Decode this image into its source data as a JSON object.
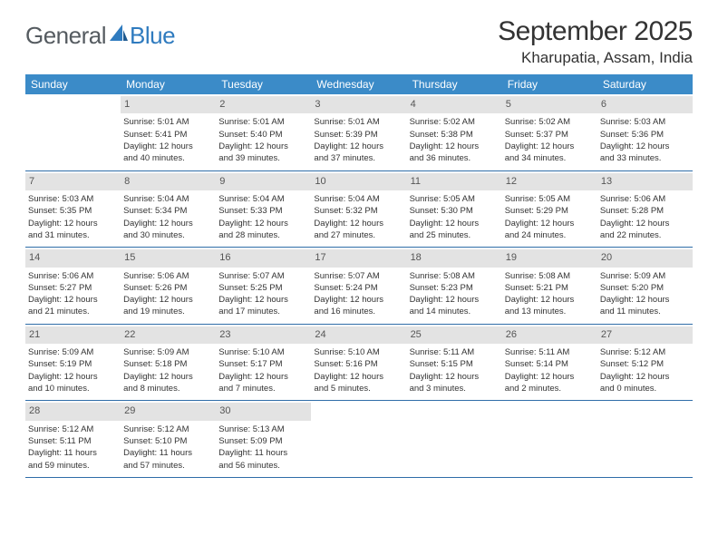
{
  "logo": {
    "general": "General",
    "blue": "Blue"
  },
  "title": "September 2025",
  "location": "Kharupatia, Assam, India",
  "colors": {
    "header_bg": "#3b8bc8",
    "header_fg": "#ffffff",
    "daynum_bg": "#e3e3e3",
    "rule": "#2f6da8",
    "text": "#333333",
    "logo_gray": "#555b60",
    "logo_blue": "#2f7bbf"
  },
  "dow": [
    "Sunday",
    "Monday",
    "Tuesday",
    "Wednesday",
    "Thursday",
    "Friday",
    "Saturday"
  ],
  "weeks": [
    [
      {
        "n": "",
        "l1": "",
        "l2": "",
        "l3": "",
        "l4": ""
      },
      {
        "n": "1",
        "l1": "Sunrise: 5:01 AM",
        "l2": "Sunset: 5:41 PM",
        "l3": "Daylight: 12 hours",
        "l4": "and 40 minutes."
      },
      {
        "n": "2",
        "l1": "Sunrise: 5:01 AM",
        "l2": "Sunset: 5:40 PM",
        "l3": "Daylight: 12 hours",
        "l4": "and 39 minutes."
      },
      {
        "n": "3",
        "l1": "Sunrise: 5:01 AM",
        "l2": "Sunset: 5:39 PM",
        "l3": "Daylight: 12 hours",
        "l4": "and 37 minutes."
      },
      {
        "n": "4",
        "l1": "Sunrise: 5:02 AM",
        "l2": "Sunset: 5:38 PM",
        "l3": "Daylight: 12 hours",
        "l4": "and 36 minutes."
      },
      {
        "n": "5",
        "l1": "Sunrise: 5:02 AM",
        "l2": "Sunset: 5:37 PM",
        "l3": "Daylight: 12 hours",
        "l4": "and 34 minutes."
      },
      {
        "n": "6",
        "l1": "Sunrise: 5:03 AM",
        "l2": "Sunset: 5:36 PM",
        "l3": "Daylight: 12 hours",
        "l4": "and 33 minutes."
      }
    ],
    [
      {
        "n": "7",
        "l1": "Sunrise: 5:03 AM",
        "l2": "Sunset: 5:35 PM",
        "l3": "Daylight: 12 hours",
        "l4": "and 31 minutes."
      },
      {
        "n": "8",
        "l1": "Sunrise: 5:04 AM",
        "l2": "Sunset: 5:34 PM",
        "l3": "Daylight: 12 hours",
        "l4": "and 30 minutes."
      },
      {
        "n": "9",
        "l1": "Sunrise: 5:04 AM",
        "l2": "Sunset: 5:33 PM",
        "l3": "Daylight: 12 hours",
        "l4": "and 28 minutes."
      },
      {
        "n": "10",
        "l1": "Sunrise: 5:04 AM",
        "l2": "Sunset: 5:32 PM",
        "l3": "Daylight: 12 hours",
        "l4": "and 27 minutes."
      },
      {
        "n": "11",
        "l1": "Sunrise: 5:05 AM",
        "l2": "Sunset: 5:30 PM",
        "l3": "Daylight: 12 hours",
        "l4": "and 25 minutes."
      },
      {
        "n": "12",
        "l1": "Sunrise: 5:05 AM",
        "l2": "Sunset: 5:29 PM",
        "l3": "Daylight: 12 hours",
        "l4": "and 24 minutes."
      },
      {
        "n": "13",
        "l1": "Sunrise: 5:06 AM",
        "l2": "Sunset: 5:28 PM",
        "l3": "Daylight: 12 hours",
        "l4": "and 22 minutes."
      }
    ],
    [
      {
        "n": "14",
        "l1": "Sunrise: 5:06 AM",
        "l2": "Sunset: 5:27 PM",
        "l3": "Daylight: 12 hours",
        "l4": "and 21 minutes."
      },
      {
        "n": "15",
        "l1": "Sunrise: 5:06 AM",
        "l2": "Sunset: 5:26 PM",
        "l3": "Daylight: 12 hours",
        "l4": "and 19 minutes."
      },
      {
        "n": "16",
        "l1": "Sunrise: 5:07 AM",
        "l2": "Sunset: 5:25 PM",
        "l3": "Daylight: 12 hours",
        "l4": "and 17 minutes."
      },
      {
        "n": "17",
        "l1": "Sunrise: 5:07 AM",
        "l2": "Sunset: 5:24 PM",
        "l3": "Daylight: 12 hours",
        "l4": "and 16 minutes."
      },
      {
        "n": "18",
        "l1": "Sunrise: 5:08 AM",
        "l2": "Sunset: 5:23 PM",
        "l3": "Daylight: 12 hours",
        "l4": "and 14 minutes."
      },
      {
        "n": "19",
        "l1": "Sunrise: 5:08 AM",
        "l2": "Sunset: 5:21 PM",
        "l3": "Daylight: 12 hours",
        "l4": "and 13 minutes."
      },
      {
        "n": "20",
        "l1": "Sunrise: 5:09 AM",
        "l2": "Sunset: 5:20 PM",
        "l3": "Daylight: 12 hours",
        "l4": "and 11 minutes."
      }
    ],
    [
      {
        "n": "21",
        "l1": "Sunrise: 5:09 AM",
        "l2": "Sunset: 5:19 PM",
        "l3": "Daylight: 12 hours",
        "l4": "and 10 minutes."
      },
      {
        "n": "22",
        "l1": "Sunrise: 5:09 AM",
        "l2": "Sunset: 5:18 PM",
        "l3": "Daylight: 12 hours",
        "l4": "and 8 minutes."
      },
      {
        "n": "23",
        "l1": "Sunrise: 5:10 AM",
        "l2": "Sunset: 5:17 PM",
        "l3": "Daylight: 12 hours",
        "l4": "and 7 minutes."
      },
      {
        "n": "24",
        "l1": "Sunrise: 5:10 AM",
        "l2": "Sunset: 5:16 PM",
        "l3": "Daylight: 12 hours",
        "l4": "and 5 minutes."
      },
      {
        "n": "25",
        "l1": "Sunrise: 5:11 AM",
        "l2": "Sunset: 5:15 PM",
        "l3": "Daylight: 12 hours",
        "l4": "and 3 minutes."
      },
      {
        "n": "26",
        "l1": "Sunrise: 5:11 AM",
        "l2": "Sunset: 5:14 PM",
        "l3": "Daylight: 12 hours",
        "l4": "and 2 minutes."
      },
      {
        "n": "27",
        "l1": "Sunrise: 5:12 AM",
        "l2": "Sunset: 5:12 PM",
        "l3": "Daylight: 12 hours",
        "l4": "and 0 minutes."
      }
    ],
    [
      {
        "n": "28",
        "l1": "Sunrise: 5:12 AM",
        "l2": "Sunset: 5:11 PM",
        "l3": "Daylight: 11 hours",
        "l4": "and 59 minutes."
      },
      {
        "n": "29",
        "l1": "Sunrise: 5:12 AM",
        "l2": "Sunset: 5:10 PM",
        "l3": "Daylight: 11 hours",
        "l4": "and 57 minutes."
      },
      {
        "n": "30",
        "l1": "Sunrise: 5:13 AM",
        "l2": "Sunset: 5:09 PM",
        "l3": "Daylight: 11 hours",
        "l4": "and 56 minutes."
      },
      {
        "n": "",
        "l1": "",
        "l2": "",
        "l3": "",
        "l4": ""
      },
      {
        "n": "",
        "l1": "",
        "l2": "",
        "l3": "",
        "l4": ""
      },
      {
        "n": "",
        "l1": "",
        "l2": "",
        "l3": "",
        "l4": ""
      },
      {
        "n": "",
        "l1": "",
        "l2": "",
        "l3": "",
        "l4": ""
      }
    ]
  ]
}
